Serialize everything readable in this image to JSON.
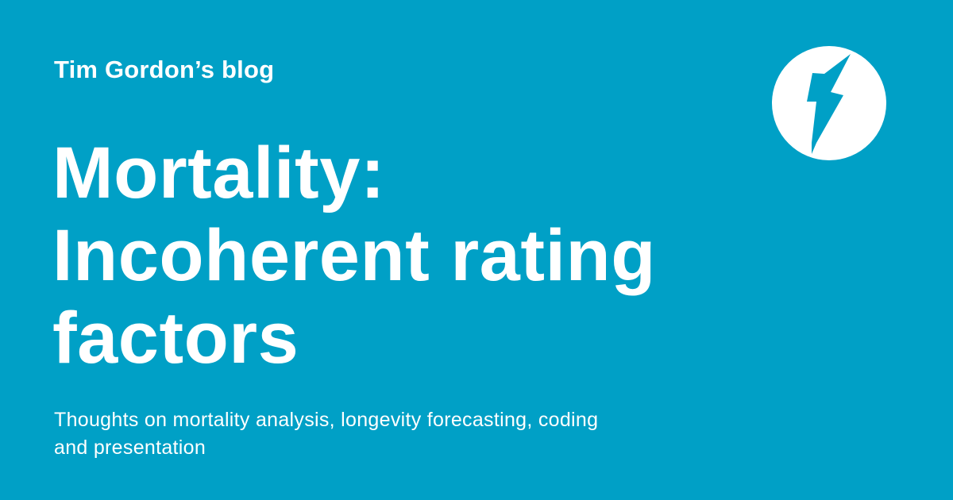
{
  "card": {
    "blog_name": "Tim Gordon’s blog",
    "headline_lines": [
      "Mortality:",
      "Incoherent rating",
      "factors"
    ],
    "tagline_lines": [
      "Thoughts on mortality analysis, longevity forecasting, coding",
      "and presentation"
    ],
    "logo_icon": "lightning-bolt-icon"
  },
  "colors": {
    "background": "#00a0c6",
    "text": "#ffffff",
    "logo_circle": "#ffffff",
    "logo_bolt": "#00a0c6"
  }
}
